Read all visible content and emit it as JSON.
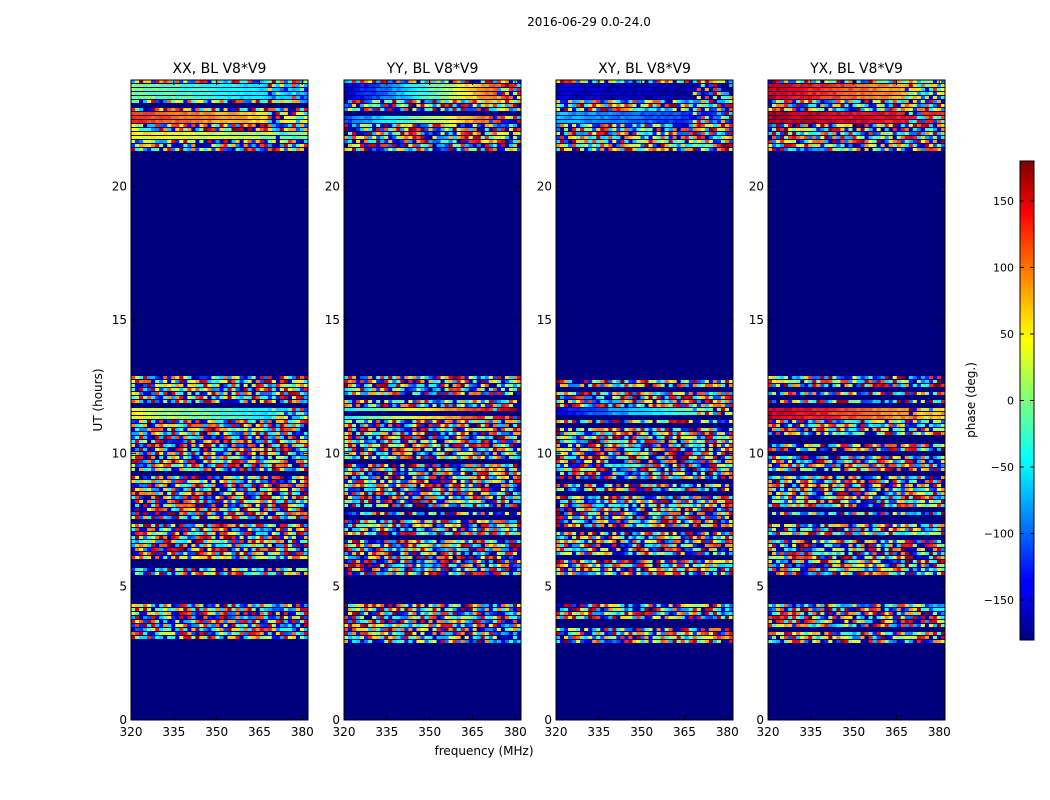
{
  "chart_data": {
    "type": "heatmap",
    "suptitle": "2016-06-29 0.0-24.0",
    "xlabel": "frequency (MHz)",
    "ylabel": "UT (hours)",
    "xlim": [
      320,
      382
    ],
    "ylim": [
      0,
      24
    ],
    "xticks": [
      320,
      335,
      350,
      365,
      380
    ],
    "yticks": [
      0,
      5,
      10,
      15,
      20
    ],
    "panels": [
      {
        "title": "XX, BL V8*V9",
        "coherent_bands": [
          {
            "t0": 23.3,
            "t1": 23.9,
            "phase_start": 5,
            "phase_end": -75
          },
          {
            "t0": 22.3,
            "t1": 22.8,
            "phase_start": 120,
            "phase_end": 40
          },
          {
            "t0": 21.8,
            "t1": 22.1,
            "phase_start": 50,
            "phase_end": 0
          },
          {
            "t0": 11.3,
            "t1": 11.7,
            "phase_start": 40,
            "phase_end": -70
          }
        ]
      },
      {
        "title": "YY, BL V8*V9",
        "coherent_bands": [
          {
            "t0": 23.3,
            "t1": 23.9,
            "phase_start": -160,
            "phase_end": 140
          },
          {
            "t0": 22.3,
            "t1": 22.8,
            "phase_start": -110,
            "phase_end": 150
          },
          {
            "t0": 11.3,
            "t1": 11.7,
            "phase_start": -40,
            "phase_end": 160
          }
        ]
      },
      {
        "title": "XY, BL V8*V9",
        "coherent_bands": [
          {
            "t0": 23.3,
            "t1": 23.9,
            "phase_start": -150,
            "phase_end": -170
          },
          {
            "t0": 22.3,
            "t1": 22.8,
            "phase_start": -70,
            "phase_end": -130
          },
          {
            "t0": 11.3,
            "t1": 11.7,
            "phase_start": -140,
            "phase_end": 30
          }
        ]
      },
      {
        "title": "YX, BL V8*V9",
        "coherent_bands": [
          {
            "t0": 23.3,
            "t1": 23.9,
            "phase_start": 150,
            "phase_end": 50
          },
          {
            "t0": 22.3,
            "t1": 22.8,
            "phase_start": 160,
            "phase_end": 120
          },
          {
            "t0": 11.3,
            "t1": 11.7,
            "phase_start": 150,
            "phase_end": 60
          }
        ]
      }
    ],
    "data_present_intervals": [
      [
        2.8,
        4.3
      ],
      [
        5.4,
        12.9
      ],
      [
        21.3,
        24.0
      ]
    ],
    "flagged_value": -180,
    "colorbar": {
      "label": "phase (deg.)",
      "range": [
        -180,
        180
      ],
      "ticks": [
        150,
        100,
        50,
        0,
        -50,
        -100,
        -150
      ],
      "tick_labels": [
        "150",
        "100",
        "50",
        "0",
        "−50",
        "−100",
        "−150"
      ],
      "colormap": "jet"
    }
  },
  "colors": {
    "flagged": "#00007f",
    "frame": "#000000",
    "background": "#ffffff"
  }
}
